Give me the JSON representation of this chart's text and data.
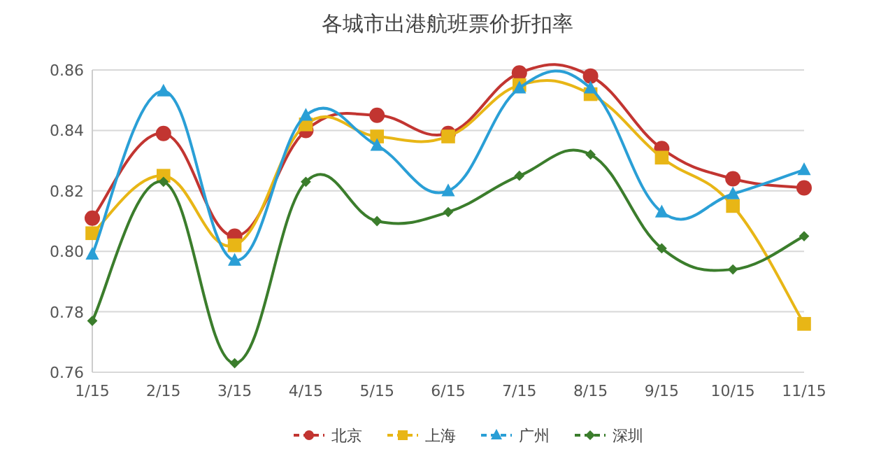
{
  "chart_data": {
    "type": "line",
    "title": "各城市出港航班票价折扣率",
    "categories": [
      "1/15",
      "2/15",
      "3/15",
      "4/15",
      "5/15",
      "6/15",
      "7/15",
      "8/15",
      "9/15",
      "10/15",
      "11/15"
    ],
    "ylim": [
      0.76,
      0.86
    ],
    "yticks": [
      {
        "value": 0.76,
        "label": "0.76"
      },
      {
        "value": 0.78,
        "label": "0.78"
      },
      {
        "value": 0.8,
        "label": "0.80"
      },
      {
        "value": 0.82,
        "label": "0.82"
      },
      {
        "value": 0.84,
        "label": "0.84"
      },
      {
        "value": 0.86,
        "label": "0.86"
      }
    ],
    "grid": "y",
    "legend": "bottom",
    "series": [
      {
        "name": "北京",
        "color": "#c23531",
        "marker": "circle",
        "values": [
          0.811,
          0.839,
          0.805,
          0.84,
          0.845,
          0.839,
          0.859,
          0.858,
          0.834,
          0.824,
          0.821
        ]
      },
      {
        "name": "上海",
        "color": "#e8b616",
        "marker": "square",
        "values": [
          0.806,
          0.825,
          0.802,
          0.842,
          0.838,
          0.838,
          0.855,
          0.852,
          0.831,
          0.815,
          0.776
        ]
      },
      {
        "name": "广州",
        "color": "#2a9fd6",
        "marker": "triangle",
        "values": [
          0.799,
          0.853,
          0.797,
          0.845,
          0.835,
          0.82,
          0.854,
          0.854,
          0.813,
          0.819,
          0.827
        ]
      },
      {
        "name": "深圳",
        "color": "#3b7d2c",
        "marker": "diamond",
        "values": [
          0.777,
          0.823,
          0.763,
          0.823,
          0.81,
          0.813,
          0.825,
          0.832,
          0.801,
          0.794,
          0.805
        ]
      }
    ]
  }
}
